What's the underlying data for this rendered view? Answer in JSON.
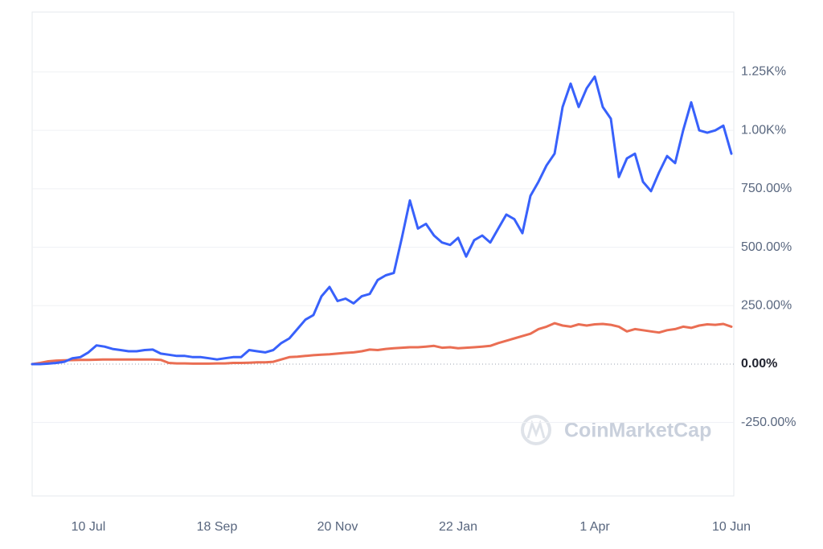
{
  "chart_data": {
    "type": "line",
    "watermark": "CoinMarketCap",
    "categories": [
      null,
      null,
      null,
      null,
      null,
      null,
      null,
      "10 Jul",
      null,
      null,
      null,
      null,
      null,
      null,
      null,
      null,
      null,
      null,
      null,
      null,
      null,
      null,
      null,
      "18 Sep",
      null,
      null,
      null,
      null,
      null,
      null,
      null,
      null,
      null,
      null,
      null,
      null,
      null,
      null,
      "20 Nov",
      null,
      null,
      null,
      null,
      null,
      null,
      null,
      null,
      null,
      null,
      null,
      null,
      null,
      null,
      "22 Jan",
      null,
      null,
      null,
      null,
      null,
      null,
      null,
      null,
      null,
      null,
      null,
      null,
      null,
      null,
      null,
      null,
      "1 Apr",
      null,
      null,
      null,
      null,
      null,
      null,
      null,
      null,
      null,
      null,
      null,
      null,
      null,
      null,
      null,
      null,
      "10 Jun"
    ],
    "series": [
      {
        "color": "#3861fb",
        "values": [
          0,
          0,
          2,
          5,
          10,
          25,
          30,
          50,
          80,
          75,
          65,
          60,
          55,
          55,
          60,
          62,
          45,
          40,
          35,
          35,
          30,
          30,
          25,
          20,
          25,
          30,
          30,
          60,
          55,
          50,
          60,
          90,
          110,
          150,
          190,
          210,
          290,
          330,
          270,
          280,
          260,
          290,
          300,
          360,
          380,
          390,
          540,
          700,
          580,
          600,
          550,
          520,
          510,
          540,
          460,
          530,
          550,
          520,
          580,
          640,
          620,
          560,
          720,
          780,
          850,
          900,
          1100,
          1200,
          1100,
          1180,
          1230,
          1100,
          1050,
          800,
          880,
          900,
          780,
          740,
          820,
          890,
          860,
          1000,
          1120,
          1000,
          990,
          1000,
          1020,
          900
        ]
      },
      {
        "color": "#ea6e53",
        "values": [
          0,
          5,
          12,
          15,
          16,
          17,
          18,
          18,
          19,
          20,
          20,
          20,
          20,
          20,
          20,
          20,
          18,
          5,
          3,
          3,
          2,
          2,
          2,
          3,
          3,
          5,
          5,
          6,
          8,
          8,
          10,
          20,
          30,
          32,
          35,
          38,
          40,
          42,
          45,
          48,
          50,
          55,
          62,
          60,
          65,
          68,
          70,
          72,
          72,
          75,
          78,
          70,
          72,
          68,
          70,
          72,
          75,
          78,
          90,
          100,
          110,
          120,
          130,
          150,
          160,
          175,
          165,
          160,
          170,
          165,
          170,
          172,
          168,
          160,
          140,
          150,
          145,
          140,
          135,
          145,
          150,
          160,
          155,
          165,
          170,
          168,
          172,
          160
        ]
      }
    ],
    "ylim": [
      -564,
      1506
    ],
    "yticks": [
      {
        "value": -250,
        "label": "-250.00%"
      },
      {
        "value": 0,
        "label": "0.00%"
      },
      {
        "value": 250,
        "label": "250.00%"
      },
      {
        "value": 500,
        "label": "500.00%"
      },
      {
        "value": 750,
        "label": "750.00%"
      },
      {
        "value": 1000,
        "label": "1.00K%"
      },
      {
        "value": 1250,
        "label": "1.25K%"
      }
    ],
    "grid": true
  }
}
